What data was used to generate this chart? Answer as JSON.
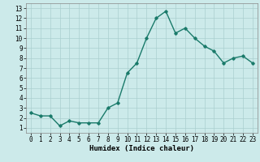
{
  "x": [
    0,
    1,
    2,
    3,
    4,
    5,
    6,
    7,
    8,
    9,
    10,
    11,
    12,
    13,
    14,
    15,
    16,
    17,
    18,
    19,
    20,
    21,
    22,
    23
  ],
  "y": [
    2.5,
    2.2,
    2.2,
    1.2,
    1.7,
    1.5,
    1.5,
    1.5,
    3.0,
    3.5,
    6.5,
    7.5,
    10.0,
    12.0,
    12.7,
    10.5,
    11.0,
    10.0,
    9.2,
    8.7,
    7.5,
    8.0,
    8.2,
    7.5
  ],
  "line_color": "#1a7a6a",
  "marker": "D",
  "marker_size": 1.8,
  "bg_color": "#cceaea",
  "grid_color": "#aacfcf",
  "xlabel": "Humidex (Indice chaleur)",
  "xlim": [
    -0.5,
    23.5
  ],
  "ylim": [
    0.5,
    13.5
  ],
  "yticks": [
    1,
    2,
    3,
    4,
    5,
    6,
    7,
    8,
    9,
    10,
    11,
    12,
    13
  ],
  "xticks": [
    0,
    1,
    2,
    3,
    4,
    5,
    6,
    7,
    8,
    9,
    10,
    11,
    12,
    13,
    14,
    15,
    16,
    17,
    18,
    19,
    20,
    21,
    22,
    23
  ],
  "label_fontsize": 6.5,
  "tick_fontsize": 5.5,
  "line_width": 1.0
}
